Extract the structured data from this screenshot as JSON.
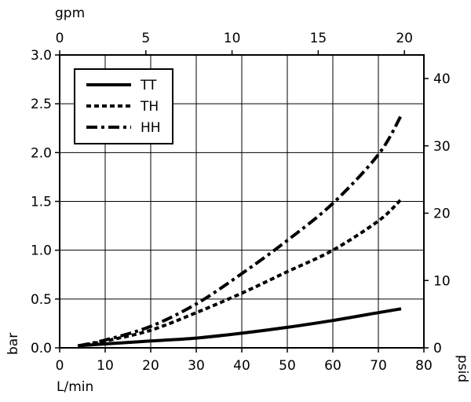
{
  "chart_data": {
    "type": "line",
    "x_bottom": {
      "label": "L/min",
      "range": [
        0,
        80
      ],
      "ticks": [
        0,
        10,
        20,
        30,
        40,
        50,
        60,
        70,
        80
      ]
    },
    "x_top": {
      "label": "gpm",
      "range": [
        0,
        21.13
      ],
      "ticks": [
        0,
        5,
        10,
        15,
        20
      ]
    },
    "y_left": {
      "label": "bar",
      "range": [
        0,
        3.0
      ],
      "ticks": [
        "0.0",
        "0.5",
        "1.0",
        "1.5",
        "2.0",
        "2.5",
        "3.0"
      ]
    },
    "y_right": {
      "label": "psid",
      "range": [
        0,
        43.5
      ],
      "ticks": [
        0,
        10,
        20,
        30,
        40
      ]
    },
    "grid": true,
    "legend_position": "top-left",
    "series": [
      {
        "name": "TT",
        "style": "solid",
        "x": [
          4,
          10,
          20,
          30,
          40,
          50,
          60,
          70,
          75
        ],
        "y": [
          0.02,
          0.04,
          0.07,
          0.1,
          0.15,
          0.21,
          0.28,
          0.36,
          0.4
        ]
      },
      {
        "name": "TH",
        "style": "dotted",
        "x": [
          4,
          10,
          20,
          30,
          40,
          50,
          60,
          70,
          75
        ],
        "y": [
          0.02,
          0.07,
          0.18,
          0.36,
          0.56,
          0.78,
          1.0,
          1.3,
          1.52
        ]
      },
      {
        "name": "HH",
        "style": "dashdot",
        "x": [
          4,
          10,
          20,
          30,
          40,
          50,
          60,
          70,
          75
        ],
        "y": [
          0.02,
          0.08,
          0.22,
          0.45,
          0.76,
          1.1,
          1.48,
          1.98,
          2.38
        ]
      }
    ]
  }
}
